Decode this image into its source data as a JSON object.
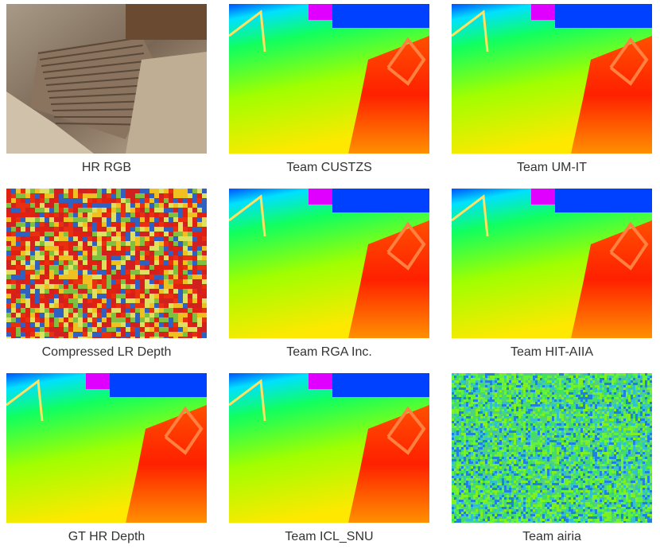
{
  "panels": [
    {
      "caption": "HR RGB"
    },
    {
      "caption": "Team CUSTZS"
    },
    {
      "caption": "Team UM-IT"
    },
    {
      "caption": "Compressed LR Depth"
    },
    {
      "caption": "Team RGA Inc."
    },
    {
      "caption": "Team HIT-AIIA"
    },
    {
      "caption": "GT HR Depth"
    },
    {
      "caption": "Team ICL_SNU"
    },
    {
      "caption": "Team airia"
    }
  ]
}
